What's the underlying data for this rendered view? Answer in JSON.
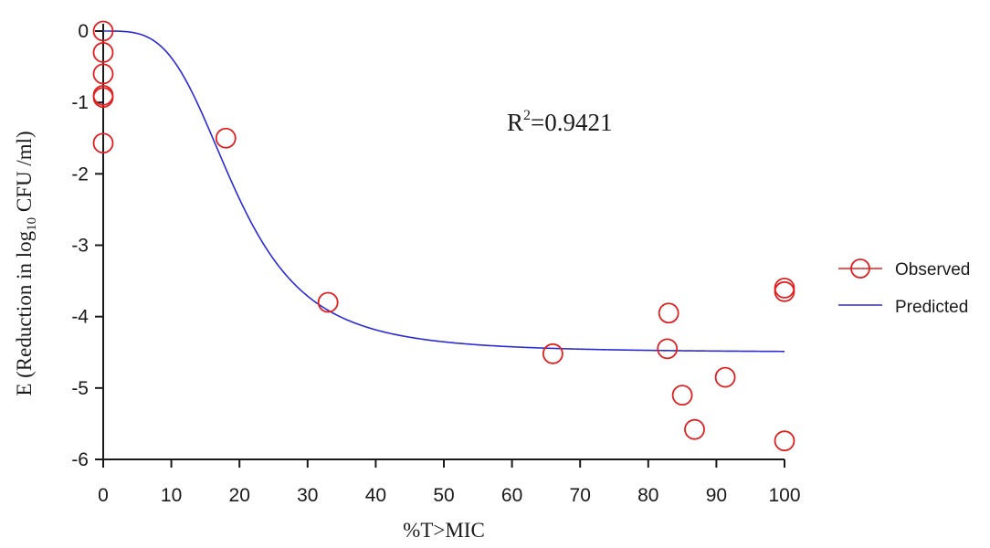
{
  "chart_data": {
    "type": "scatter",
    "xlabel": "%T>MIC",
    "ylabel": {
      "prefix": "E (Reduction in log",
      "subscript": "10",
      "suffix": " CFU /ml)"
    },
    "xlim": [
      0,
      100
    ],
    "ylim": [
      -6,
      0
    ],
    "x_ticks": [
      0,
      10,
      20,
      30,
      40,
      50,
      60,
      70,
      80,
      90,
      100
    ],
    "y_ticks": [
      0,
      -1,
      -2,
      -3,
      -4,
      -5,
      -6
    ],
    "x_tick_labels": [
      "0",
      "10",
      "20",
      "30",
      "40",
      "50",
      "60",
      "70",
      "80",
      "90",
      "100"
    ],
    "y_tick_labels": [
      "0",
      "-1",
      "-2",
      "-3",
      "-4",
      "-5",
      "-6"
    ],
    "annotation": {
      "base": "R",
      "sup": "2",
      "rest": "=0.9421"
    },
    "grid": false,
    "legend_position": "right",
    "series": [
      {
        "name": "Observed",
        "kind": "marker",
        "marker": "open-circle",
        "color": "#e02020",
        "points": [
          [
            0,
            0.0
          ],
          [
            0,
            -0.3
          ],
          [
            0,
            -0.6
          ],
          [
            0,
            -0.9
          ],
          [
            0,
            -0.93
          ],
          [
            0,
            -1.57
          ],
          [
            18,
            -1.5
          ],
          [
            33,
            -3.8
          ],
          [
            66,
            -4.52
          ],
          [
            83,
            -3.95
          ],
          [
            82.8,
            -4.45
          ],
          [
            85,
            -5.1
          ],
          [
            86.8,
            -5.58
          ],
          [
            91.3,
            -4.85
          ],
          [
            100,
            -3.6
          ],
          [
            100,
            -3.65
          ],
          [
            100,
            -5.74
          ]
        ]
      },
      {
        "name": "Predicted",
        "kind": "line",
        "color": "#2b2bd6",
        "model": {
          "e0": 0,
          "emax": -4.5,
          "ec50": 19.5,
          "hill": 3.6
        }
      }
    ]
  }
}
